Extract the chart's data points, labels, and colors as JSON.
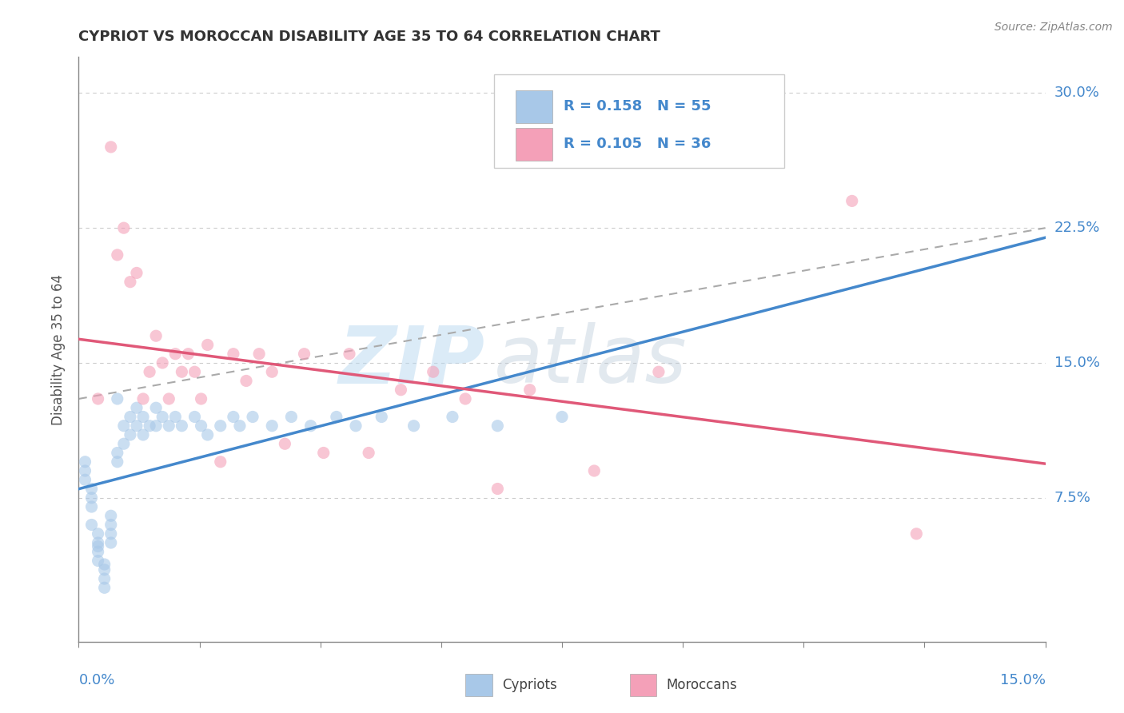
{
  "title": "CYPRIOT VS MOROCCAN DISABILITY AGE 35 TO 64 CORRELATION CHART",
  "source": "Source: ZipAtlas.com",
  "ylabel": "Disability Age 35 to 64",
  "xlim": [
    0.0,
    0.15
  ],
  "ylim": [
    -0.005,
    0.32
  ],
  "yticks": [
    0.075,
    0.15,
    0.225,
    0.3
  ],
  "ytick_labels": [
    "7.5%",
    "15.0%",
    "22.5%",
    "30.0%"
  ],
  "cypriot_color": "#a8c8e8",
  "moroccan_color": "#f4a0b8",
  "cypriot_line_color": "#4488cc",
  "moroccan_line_color": "#e05878",
  "label_color": "#4488cc",
  "R_cypriot": 0.158,
  "N_cypriot": 55,
  "R_moroccan": 0.105,
  "N_moroccan": 36,
  "background_color": "#ffffff",
  "grid_color": "#cccccc",
  "watermark": "ZIPAtlas",
  "cypriot_x": [
    0.001,
    0.001,
    0.001,
    0.002,
    0.002,
    0.002,
    0.002,
    0.003,
    0.003,
    0.003,
    0.003,
    0.003,
    0.004,
    0.004,
    0.004,
    0.004,
    0.005,
    0.005,
    0.005,
    0.005,
    0.006,
    0.006,
    0.006,
    0.007,
    0.007,
    0.008,
    0.008,
    0.009,
    0.009,
    0.01,
    0.01,
    0.011,
    0.012,
    0.012,
    0.013,
    0.014,
    0.015,
    0.016,
    0.018,
    0.019,
    0.02,
    0.022,
    0.024,
    0.025,
    0.027,
    0.03,
    0.033,
    0.036,
    0.04,
    0.043,
    0.047,
    0.052,
    0.058,
    0.065,
    0.075
  ],
  "cypriot_y": [
    0.095,
    0.09,
    0.085,
    0.08,
    0.075,
    0.07,
    0.06,
    0.055,
    0.05,
    0.048,
    0.045,
    0.04,
    0.038,
    0.035,
    0.03,
    0.025,
    0.05,
    0.055,
    0.06,
    0.065,
    0.095,
    0.1,
    0.13,
    0.105,
    0.115,
    0.11,
    0.12,
    0.115,
    0.125,
    0.11,
    0.12,
    0.115,
    0.125,
    0.115,
    0.12,
    0.115,
    0.12,
    0.115,
    0.12,
    0.115,
    0.11,
    0.115,
    0.12,
    0.115,
    0.12,
    0.115,
    0.12,
    0.115,
    0.12,
    0.115,
    0.12,
    0.115,
    0.12,
    0.115,
    0.12
  ],
  "moroccan_x": [
    0.003,
    0.005,
    0.006,
    0.007,
    0.008,
    0.009,
    0.01,
    0.011,
    0.012,
    0.013,
    0.014,
    0.015,
    0.016,
    0.017,
    0.018,
    0.019,
    0.02,
    0.022,
    0.024,
    0.026,
    0.028,
    0.03,
    0.032,
    0.035,
    0.038,
    0.042,
    0.045,
    0.05,
    0.055,
    0.06,
    0.065,
    0.07,
    0.08,
    0.09,
    0.12,
    0.13
  ],
  "moroccan_y": [
    0.13,
    0.27,
    0.21,
    0.225,
    0.195,
    0.2,
    0.13,
    0.145,
    0.165,
    0.15,
    0.13,
    0.155,
    0.145,
    0.155,
    0.145,
    0.13,
    0.16,
    0.095,
    0.155,
    0.14,
    0.155,
    0.145,
    0.105,
    0.155,
    0.1,
    0.155,
    0.1,
    0.135,
    0.145,
    0.13,
    0.08,
    0.135,
    0.09,
    0.145,
    0.24,
    0.055
  ]
}
